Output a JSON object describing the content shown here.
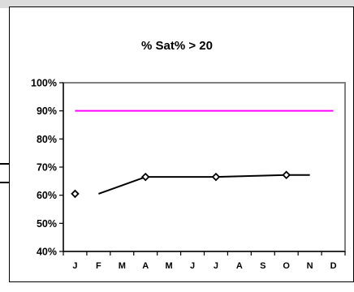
{
  "colors": {
    "reference_line": "#ff00ff",
    "series_line": "#000000",
    "plot_border": "#808080",
    "frame": "#000000"
  },
  "chart_data": {
    "type": "line",
    "title": "% Sat% > 20",
    "xlabel": "",
    "ylabel": "",
    "categories": [
      "J",
      "F",
      "M",
      "A",
      "M",
      "J",
      "J",
      "A",
      "S",
      "O",
      "N",
      "D"
    ],
    "ylim": [
      40,
      100
    ],
    "ytick_labels": [
      "40%",
      "50%",
      "60%",
      "70%",
      "80%",
      "90%",
      "100%"
    ],
    "ytick_values": [
      40,
      50,
      60,
      70,
      80,
      90,
      100
    ],
    "grid": false,
    "legend": "none",
    "series": [
      {
        "values": [
          60.5,
          60.5,
          null,
          66.5,
          null,
          null,
          66.5,
          null,
          null,
          67.2,
          67.2,
          null
        ],
        "segments": [
          [
            0,
            0
          ],
          [
            1,
            3
          ],
          [
            3,
            6
          ],
          [
            6,
            9
          ],
          [
            9,
            10
          ]
        ],
        "markers": [
          0,
          3,
          6,
          9
        ],
        "marker_style": "open-diamond",
        "color": "#000000"
      },
      {
        "values": [
          90,
          90,
          90,
          90,
          90,
          90,
          90,
          90,
          90,
          90,
          90,
          90
        ],
        "marker_style": "none",
        "color": "#ff00ff"
      }
    ]
  }
}
